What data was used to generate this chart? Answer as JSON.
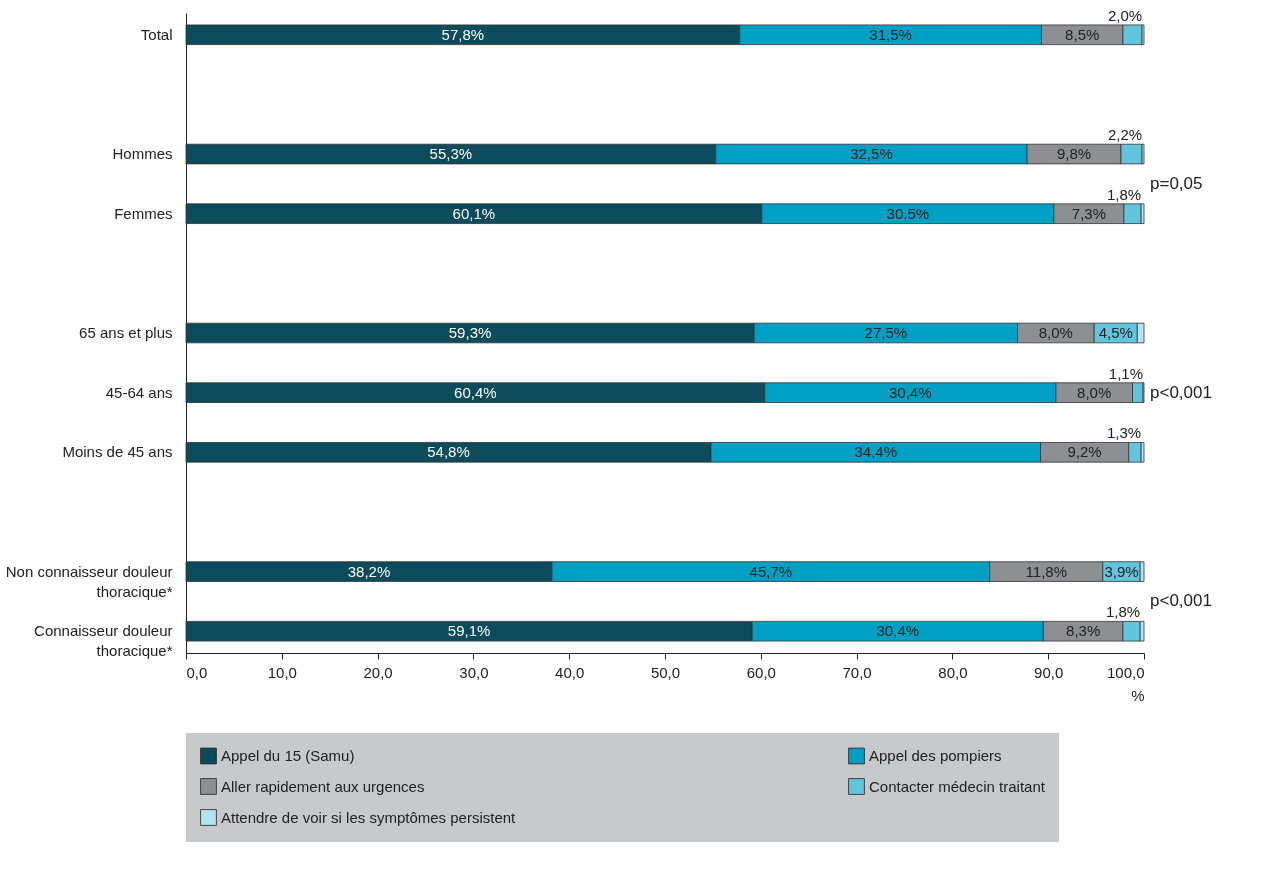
{
  "chart_data": {
    "type": "bar",
    "orientation": "horizontal",
    "stacked": true,
    "categories": [
      "Total",
      null,
      "Hommes",
      "Femmes",
      null,
      "65 ans et plus",
      "45-64 ans",
      "Moins de 45 ans",
      null,
      "Non connaisseur douleur thoracique*",
      "Connaisseur douleur thoracique*"
    ],
    "series": [
      {
        "name": "Appel du 15 (Samu)",
        "color": "#0b4b5b",
        "values": [
          57.8,
          null,
          55.3,
          60.1,
          null,
          59.3,
          60.4,
          54.8,
          null,
          38.2,
          59.1
        ],
        "value_labels": [
          "57,8%",
          null,
          "55,3%",
          "60,1%",
          null,
          "59,3%",
          "60,4%",
          "54,8%",
          null,
          "38,2%",
          "59,1%"
        ]
      },
      {
        "name": "Appel des pompiers",
        "color": "#009fc4",
        "values": [
          31.5,
          null,
          32.5,
          30.5,
          null,
          27.5,
          30.4,
          34.4,
          null,
          45.7,
          30.4
        ],
        "value_labels": [
          "31,5%",
          null,
          "32,5%",
          "30,5%",
          null,
          "27,5%",
          "30,4%",
          "34,4%",
          null,
          "45,7%",
          "30,4%"
        ]
      },
      {
        "name": "Aller rapidement aux urgences",
        "color": "#8e8f93",
        "values": [
          8.5,
          null,
          9.8,
          7.3,
          null,
          8.0,
          8.0,
          9.2,
          null,
          11.8,
          8.3
        ],
        "value_labels": [
          "8,5%",
          null,
          "9,8%",
          "7,3%",
          null,
          "8,0%",
          "8,0%",
          "9,2%",
          null,
          "11,8%",
          "8,3%"
        ]
      },
      {
        "name": "Contacter médecin traitant",
        "color": "#63c4de",
        "values": [
          2.0,
          null,
          2.2,
          1.8,
          null,
          4.5,
          1.1,
          1.3,
          null,
          3.9,
          1.8
        ],
        "value_labels": [
          "2,0%",
          null,
          "2,2%",
          "1,8%",
          null,
          "4,5%",
          "1,1%",
          "1,3%",
          null,
          "3,9%",
          "1,8%"
        ]
      },
      {
        "name": "Attendre de voir si les symptômes persistent",
        "color": "#b5e2f0",
        "values": [
          0.2,
          null,
          0.2,
          0.3,
          null,
          0.7,
          0.1,
          0.3,
          null,
          0.4,
          0.4
        ]
      }
    ],
    "xlim": [
      0,
      100
    ],
    "xticks": [
      {
        "value": 0,
        "label": "0,0"
      },
      {
        "value": 10,
        "label": "10,0"
      },
      {
        "value": 20,
        "label": "20,0"
      },
      {
        "value": 30,
        "label": "30,0"
      },
      {
        "value": 40,
        "label": "40,0"
      },
      {
        "value": 50,
        "label": "50,0"
      },
      {
        "value": 60,
        "label": "60,0"
      },
      {
        "value": 70,
        "label": "70,0"
      },
      {
        "value": 80,
        "label": "80,0"
      },
      {
        "value": 90,
        "label": "90,0"
      },
      {
        "value": 100,
        "label": "100,0"
      }
    ],
    "xlabel": "%",
    "annotations": [
      "p=0,05",
      "p<0,001",
      "p<0,001"
    ],
    "grid": false,
    "legend": "bottom"
  }
}
